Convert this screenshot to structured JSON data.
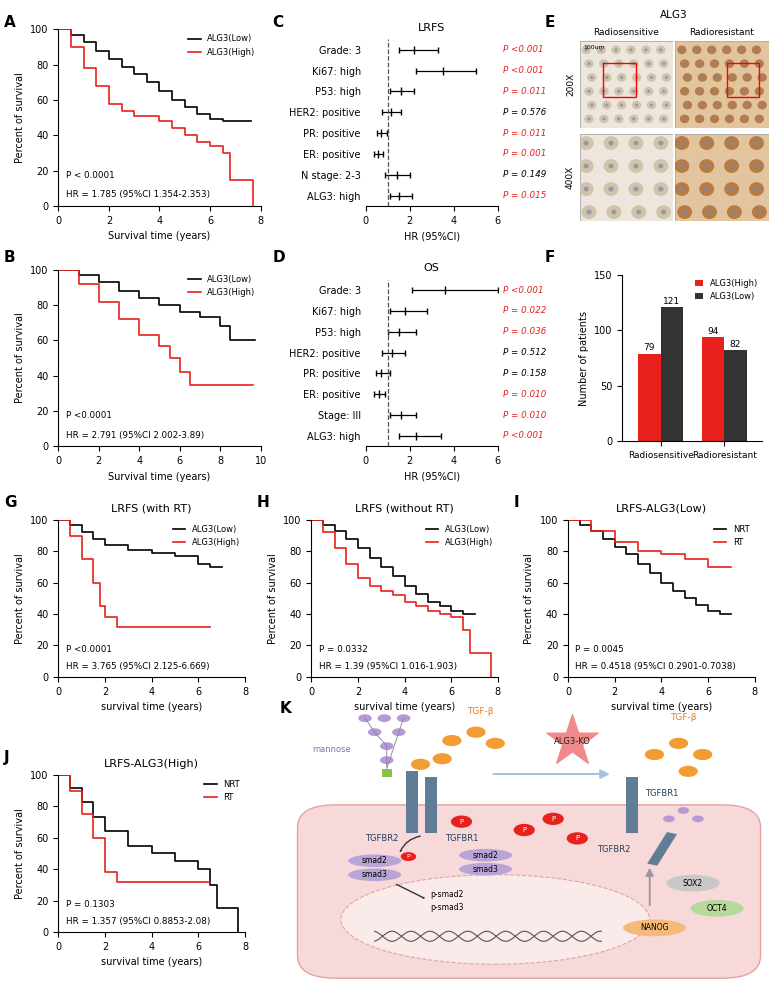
{
  "chart_data": [
    {
      "panel": "A",
      "type": "survival",
      "xlabel": "Survival time (years)",
      "ylabel": "Percent of survival",
      "xlim": [
        0,
        8
      ],
      "xticks": [
        0,
        2,
        4,
        6,
        8
      ],
      "ylim": [
        0,
        100
      ],
      "yticks": [
        0,
        20,
        40,
        60,
        80,
        100
      ],
      "legend": "upper right",
      "annotations": [
        "P < 0.0001",
        "HR = 1.785 (95%CI 1.354-2.353)"
      ],
      "series": [
        {
          "name": "ALG3(Low)",
          "color": "#000000",
          "x": [
            0,
            0.5,
            1,
            1.5,
            2,
            2.5,
            3,
            3.5,
            4,
            4.5,
            5,
            5.5,
            6,
            6.5,
            7.6
          ],
          "values": [
            100,
            97,
            93,
            88,
            83,
            79,
            75,
            70,
            65,
            60,
            56,
            52,
            49,
            48,
            48
          ]
        },
        {
          "name": "ALG3(High)",
          "color": "#e8211c",
          "x": [
            0,
            0.5,
            1,
            1.5,
            2,
            2.5,
            3,
            4,
            4.5,
            5,
            5.5,
            6,
            6.5,
            6.8,
            7.7
          ],
          "values": [
            100,
            90,
            78,
            68,
            58,
            54,
            51,
            48,
            44,
            40,
            36,
            34,
            30,
            15,
            0
          ]
        }
      ]
    },
    {
      "panel": "B",
      "type": "survival",
      "xlabel": "Survival time (years)",
      "ylabel": "Percent of survival",
      "xlim": [
        0,
        10
      ],
      "xticks": [
        0,
        2,
        4,
        6,
        8,
        10
      ],
      "ylim": [
        0,
        100
      ],
      "yticks": [
        0,
        20,
        40,
        60,
        80,
        100
      ],
      "legend": "upper right",
      "annotations": [
        "P <0.0001",
        "HR = 2.791 (95%CI 2.002-3.89)"
      ],
      "series": [
        {
          "name": "ALG3(Low)",
          "color": "#000000",
          "x": [
            0,
            1,
            2,
            3,
            4,
            5,
            6,
            7,
            8,
            8.5,
            9.7
          ],
          "values": [
            100,
            97,
            93,
            88,
            84,
            80,
            76,
            73,
            68,
            60,
            60
          ]
        },
        {
          "name": "ALG3(High)",
          "color": "#e8211c",
          "x": [
            0,
            1,
            2,
            3,
            4,
            5,
            5.5,
            6,
            6.5,
            8,
            9.6
          ],
          "values": [
            100,
            92,
            82,
            72,
            63,
            57,
            50,
            42,
            35,
            35,
            35
          ]
        }
      ]
    },
    {
      "panel": "C",
      "type": "forest",
      "title": "LRFS",
      "xlabel": "HR (95%CI)",
      "xlim": [
        0,
        6
      ],
      "xticks": [
        0,
        2,
        4,
        6
      ],
      "reference": 1,
      "categories": [
        "Grade: 3",
        "Ki67: high",
        "P53: high",
        "HER2: positive",
        "PR: positive",
        "ER: positive",
        "N stage: 2-3",
        "ALG3: high"
      ],
      "values": [
        2.2,
        3.5,
        1.6,
        1.15,
        0.7,
        0.55,
        1.4,
        1.5
      ],
      "ci_low": [
        1.5,
        2.3,
        1.1,
        0.75,
        0.5,
        0.4,
        0.9,
        1.1
      ],
      "ci_high": [
        3.3,
        5.0,
        2.2,
        1.6,
        0.95,
        0.78,
        2.0,
        2.1
      ],
      "p_values": [
        "P <0.001",
        "P <0.001",
        "P = 0.011",
        "P = 0.576",
        "P = 0.011",
        "P = 0.001",
        "P = 0.149",
        "P = 0.015"
      ],
      "colors": [
        "#e8211c",
        "#e8211c",
        "#e8211c",
        "#000000",
        "#e8211c",
        "#e8211c",
        "#000000",
        "#e8211c"
      ]
    },
    {
      "panel": "D",
      "type": "forest",
      "title": "OS",
      "xlabel": "HR (95%CI)",
      "xlim": [
        0,
        6
      ],
      "xticks": [
        0,
        2,
        4,
        6
      ],
      "reference": 1,
      "categories": [
        "Grade: 3",
        "Ki67: high",
        "P53: high",
        "HER2: positive",
        "PR: positive",
        "ER: positive",
        "Stage: III",
        "ALG3: high"
      ],
      "values": [
        3.6,
        1.8,
        1.5,
        1.2,
        0.7,
        0.6,
        1.6,
        2.3
      ],
      "ci_low": [
        2.1,
        1.1,
        1.0,
        0.75,
        0.45,
        0.4,
        1.1,
        1.5
      ],
      "ci_high": [
        6.0,
        2.8,
        2.3,
        1.8,
        1.1,
        0.9,
        2.3,
        3.4
      ],
      "p_values": [
        "P <0.001",
        "P = 0.022",
        "P = 0.036",
        "P = 0.512",
        "P = 0.158",
        "P = 0.010",
        "P = 0.010",
        "P <0.001"
      ],
      "colors": [
        "#e8211c",
        "#e8211c",
        "#e8211c",
        "#000000",
        "#000000",
        "#e8211c",
        "#e8211c",
        "#e8211c"
      ]
    },
    {
      "panel": "F",
      "type": "bar",
      "ylabel": "Number of patients",
      "categories": [
        "Radiosensitive",
        "Radioresistant"
      ],
      "ylim": [
        0,
        150
      ],
      "yticks": [
        0,
        50,
        100,
        150
      ],
      "data_labels": true,
      "legend": "upper right",
      "series": [
        {
          "name": "ALG3(High)",
          "color": "#e8211c",
          "values": [
            79,
            94
          ]
        },
        {
          "name": "ALG3(Low)",
          "color": "#333333",
          "values": [
            121,
            82
          ]
        }
      ]
    },
    {
      "panel": "G",
      "type": "survival",
      "title": "LRFS (with RT)",
      "xlabel": "survival time (years)",
      "ylabel": "Percent of survival",
      "xlim": [
        0,
        8
      ],
      "xticks": [
        0,
        2,
        4,
        6,
        8
      ],
      "ylim": [
        0,
        100
      ],
      "yticks": [
        0,
        20,
        40,
        60,
        80,
        100
      ],
      "legend": "upper right",
      "annotations": [
        "P <0.0001",
        "HR = 3.765 (95%CI 2.125-6.669)"
      ],
      "series": [
        {
          "name": "ALG3(Low)",
          "color": "#000000",
          "x": [
            0,
            0.5,
            1,
            1.5,
            2,
            3,
            4,
            5,
            6,
            6.5,
            7
          ],
          "values": [
            100,
            97,
            92,
            88,
            84,
            81,
            79,
            77,
            72,
            70,
            70
          ]
        },
        {
          "name": "ALG3(High)",
          "color": "#e8211c",
          "x": [
            0,
            0.5,
            1,
            1.5,
            1.8,
            2,
            2.5,
            6.5
          ],
          "values": [
            100,
            90,
            75,
            60,
            45,
            38,
            32,
            32
          ]
        }
      ]
    },
    {
      "panel": "H",
      "type": "survival",
      "title": "LRFS (without RT)",
      "xlabel": "survival time (years)",
      "ylabel": "Percent of survival",
      "xlim": [
        0,
        8
      ],
      "xticks": [
        0,
        2,
        4,
        6,
        8
      ],
      "ylim": [
        0,
        100
      ],
      "yticks": [
        0,
        20,
        40,
        60,
        80,
        100
      ],
      "legend": "upper right",
      "annotations": [
        "P = 0.0332",
        "HR = 1.39 (95%CI 1.016-1.903)"
      ],
      "series": [
        {
          "name": "ALG3(Low)",
          "color": "#000000",
          "x": [
            0,
            0.5,
            1,
            1.5,
            2,
            2.5,
            3,
            3.5,
            4,
            4.5,
            5,
            5.5,
            6,
            6.5,
            7
          ],
          "values": [
            100,
            97,
            93,
            88,
            82,
            76,
            70,
            64,
            58,
            53,
            48,
            45,
            42,
            40,
            40
          ]
        },
        {
          "name": "ALG3(High)",
          "color": "#e8211c",
          "x": [
            0,
            0.5,
            1,
            1.5,
            2,
            2.5,
            3,
            3.5,
            4,
            4.5,
            5,
            5.5,
            6,
            6.5,
            6.8,
            7.7
          ],
          "values": [
            100,
            92,
            82,
            72,
            63,
            58,
            55,
            52,
            48,
            45,
            42,
            40,
            38,
            30,
            15,
            0
          ]
        }
      ]
    },
    {
      "panel": "I",
      "type": "survival",
      "title": "LRFS-ALG3(Low)",
      "xlabel": "survival time (years)",
      "ylabel": "Percent of survival",
      "xlim": [
        0,
        8
      ],
      "xticks": [
        0,
        2,
        4,
        6,
        8
      ],
      "ylim": [
        0,
        100
      ],
      "yticks": [
        0,
        20,
        40,
        60,
        80,
        100
      ],
      "legend": "upper right",
      "annotations": [
        "P = 0.0045",
        "HR = 0.4518 (95%CI 0.2901-0.7038)"
      ],
      "series": [
        {
          "name": "NRT",
          "color": "#000000",
          "x": [
            0,
            0.5,
            1,
            1.5,
            2,
            2.5,
            3,
            3.5,
            4,
            4.5,
            5,
            5.5,
            6,
            6.5,
            7
          ],
          "values": [
            100,
            97,
            93,
            88,
            83,
            78,
            72,
            66,
            60,
            55,
            50,
            46,
            42,
            40,
            40
          ]
        },
        {
          "name": "RT",
          "color": "#e8211c",
          "x": [
            0,
            1,
            2,
            3,
            4,
            5,
            6,
            7
          ],
          "values": [
            100,
            93,
            86,
            80,
            78,
            75,
            70,
            70
          ]
        }
      ]
    },
    {
      "panel": "J",
      "type": "survival",
      "title": "LRFS-ALG3(High)",
      "xlabel": "survival time (years)",
      "ylabel": "Percent of survival",
      "xlim": [
        0,
        8
      ],
      "xticks": [
        0,
        2,
        4,
        6,
        8
      ],
      "ylim": [
        0,
        100
      ],
      "yticks": [
        0,
        20,
        40,
        60,
        80,
        100
      ],
      "legend": "upper right",
      "annotations": [
        "P = 0.1303",
        "HR = 1.357 (95%CI 0.8853-2.08)"
      ],
      "series": [
        {
          "name": "NRT",
          "color": "#000000",
          "x": [
            0,
            0.5,
            1,
            1.5,
            2,
            3,
            4,
            5,
            6,
            6.5,
            6.8,
            7.7
          ],
          "values": [
            100,
            92,
            83,
            73,
            64,
            55,
            50,
            45,
            40,
            30,
            15,
            0
          ]
        },
        {
          "name": "RT",
          "color": "#e8211c",
          "x": [
            0,
            0.5,
            1,
            1.5,
            2,
            2.5,
            6.5
          ],
          "values": [
            100,
            90,
            75,
            60,
            38,
            32,
            32
          ]
        }
      ]
    }
  ],
  "image_panel": {
    "panel": "E",
    "title": "ALG3",
    "columns": [
      "Radiosensitive",
      "Radioresistant"
    ],
    "rows": [
      "200X",
      "400X"
    ],
    "scale_bar": "100um"
  },
  "diagram": {
    "panel": "K",
    "mannose": "mannose",
    "ligand": "TGF-β",
    "knockout": "ALG3-KO",
    "receptor2": "TGFBR2",
    "receptor1": "TGFBR1",
    "phospho": "P",
    "smad2": "smad2",
    "smad3": "smad3",
    "psmad2": "p-smad2",
    "psmad3": "p-smad3",
    "sox2": "SOX2",
    "oct4": "OCT4",
    "nanog": "NANOG"
  }
}
